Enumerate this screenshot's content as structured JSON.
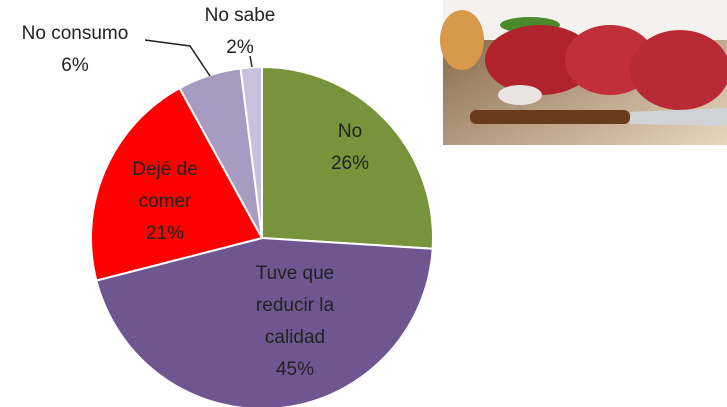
{
  "chart_data": {
    "type": "pie",
    "categories": [
      "No",
      "Tuve que reducir la calidad",
      "Dejé de comer",
      "No consumo",
      "No sabe"
    ],
    "values": [
      26,
      45,
      21,
      6,
      2
    ],
    "value_labels": [
      "26%",
      "45%",
      "21%",
      "6%",
      "2%"
    ],
    "colors": [
      "#77933c",
      "#6f5691",
      "#ff0000",
      "#a79bc2",
      "#c8c0dc"
    ]
  }
}
